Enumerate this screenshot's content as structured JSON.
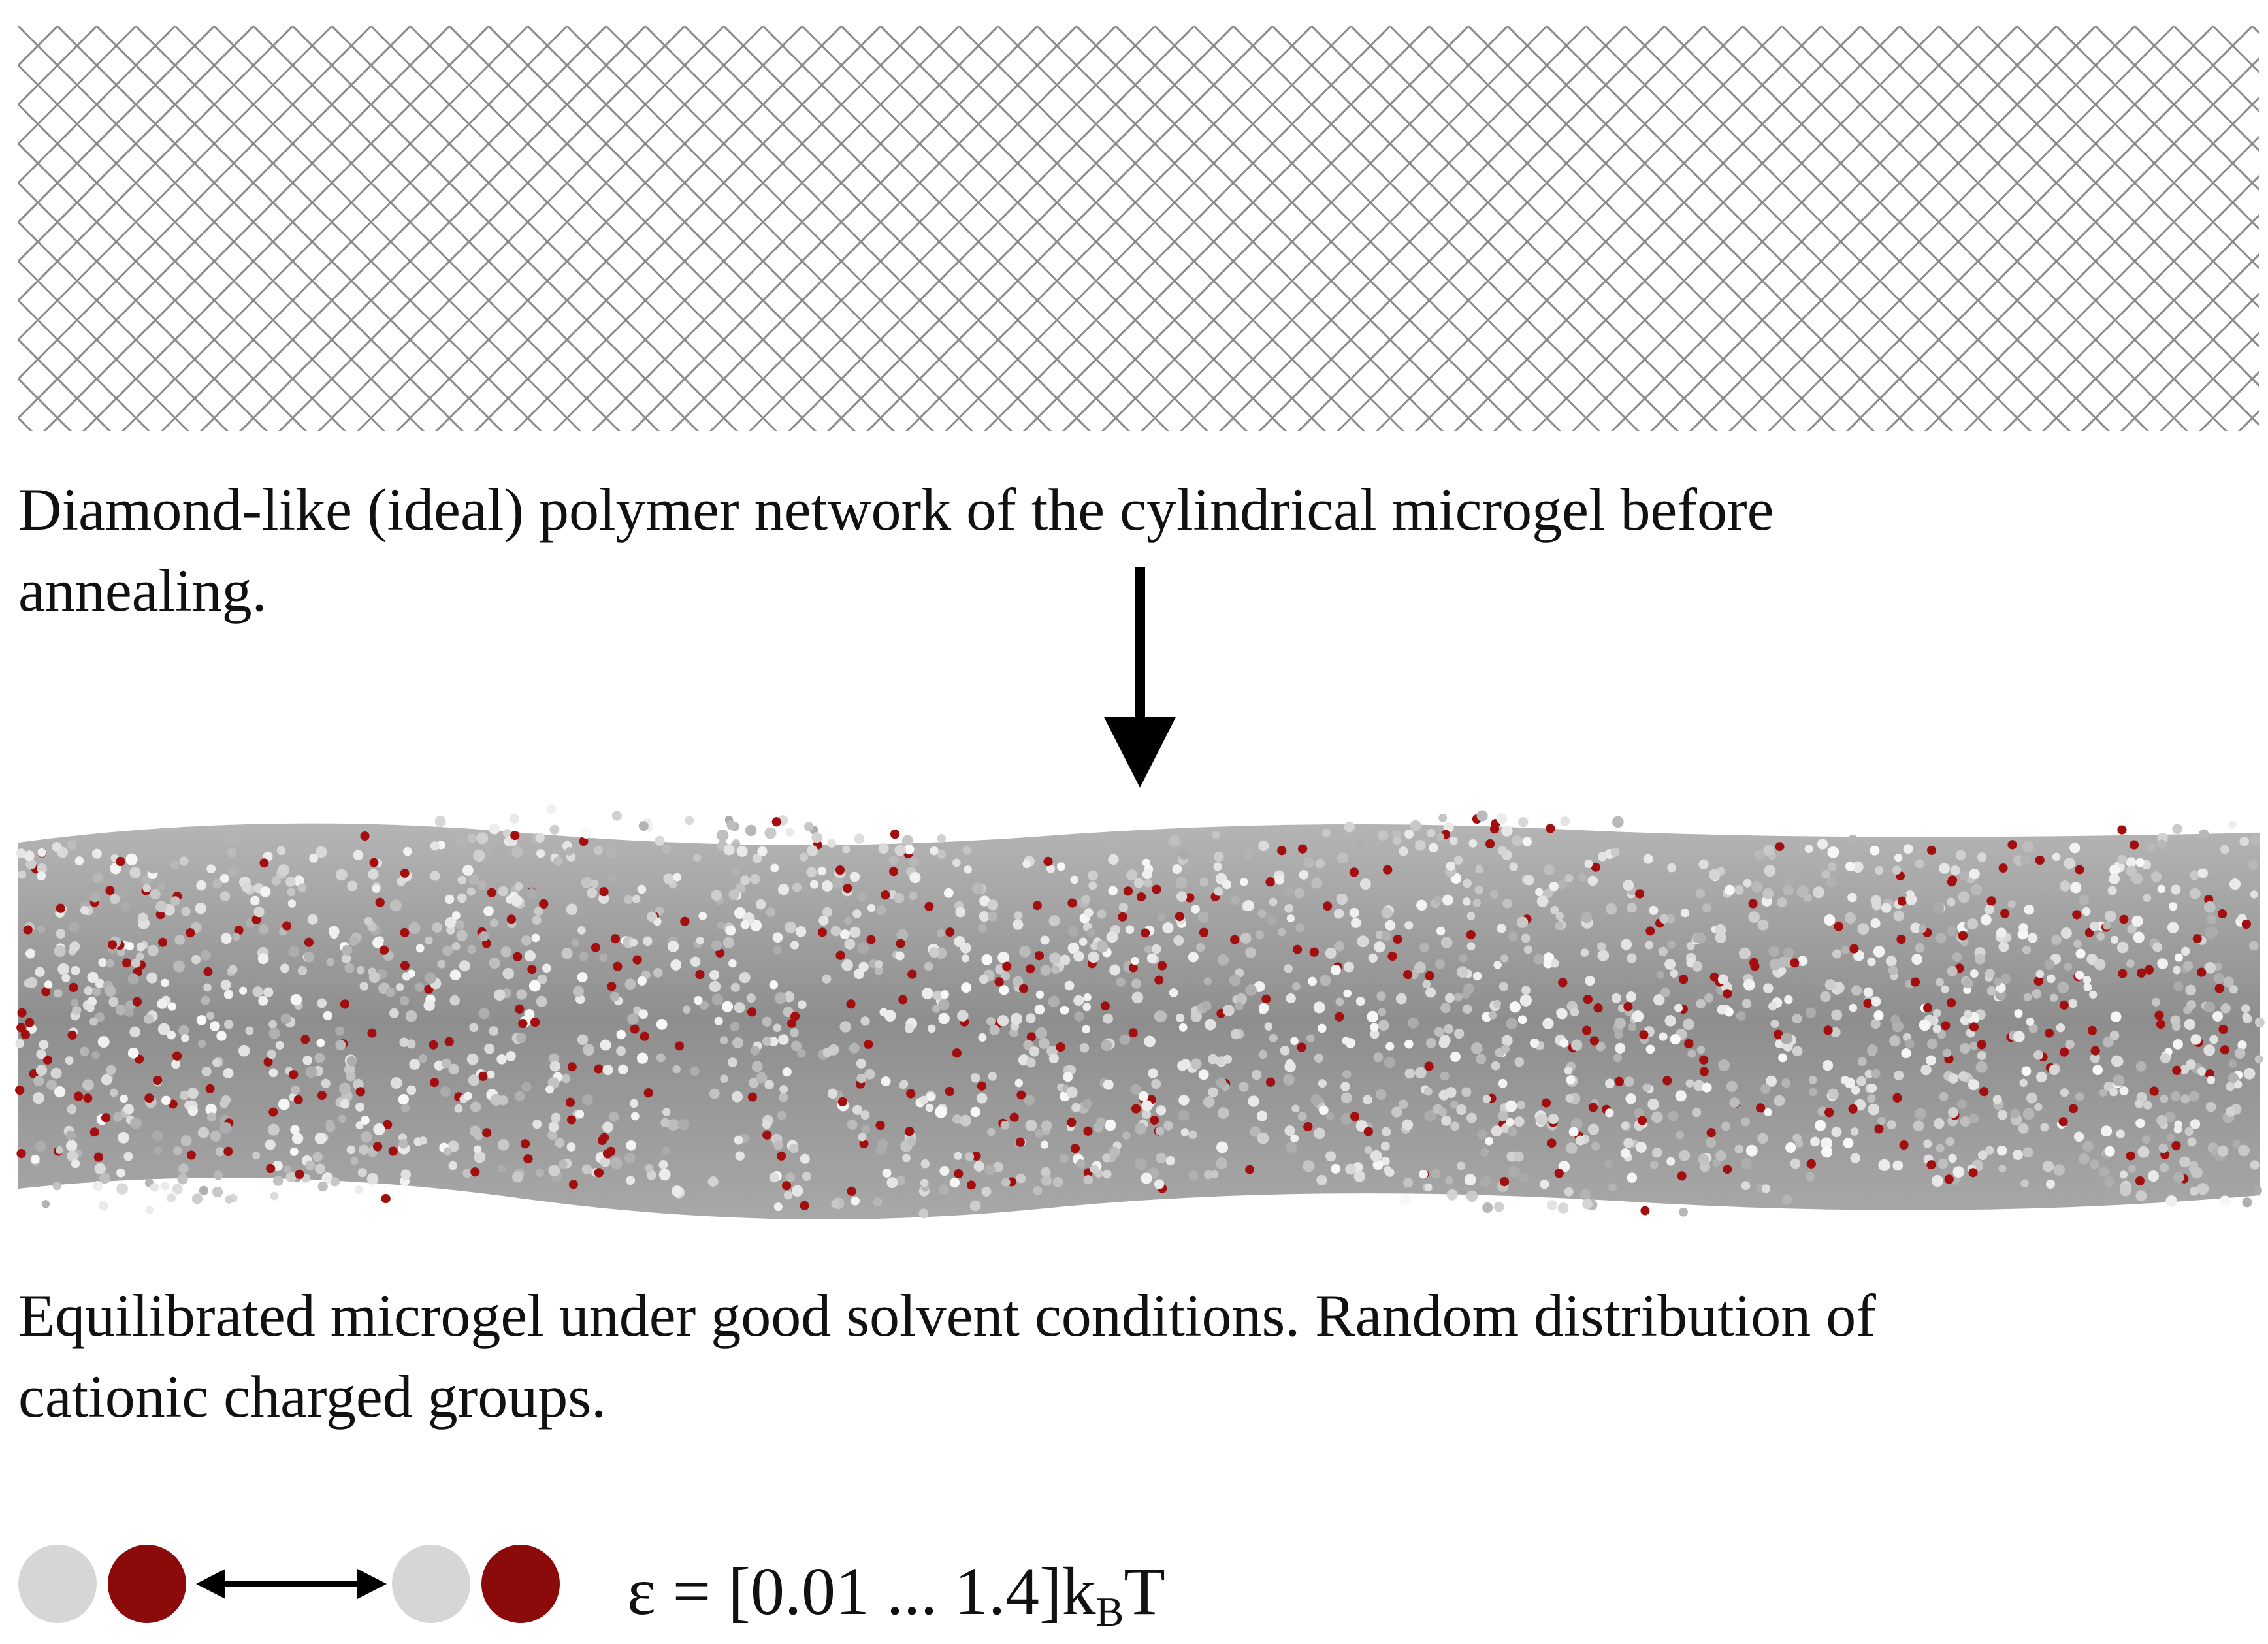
{
  "captions": {
    "network_line1": "Diamond-like (ideal) polymer network of the cylindrical microgel  before",
    "network_line2": "annealing.",
    "equilibrated_line1": "Equilibrated microgel under good solvent conditions. Random distribution of",
    "equilibrated_line2": "cationic charged groups."
  },
  "legend": {
    "epsilon_prefix": "ε = [0.01 ... 1.4]k",
    "epsilon_subscript": "B",
    "epsilon_suffix": "T"
  },
  "colors": {
    "lattice_line": "#8a8a8a",
    "neutral_bead": "#d6d6d6",
    "charged_bead": "#8b0a0a",
    "gel_base": "#7f7f7f",
    "arrow": "#000000"
  }
}
